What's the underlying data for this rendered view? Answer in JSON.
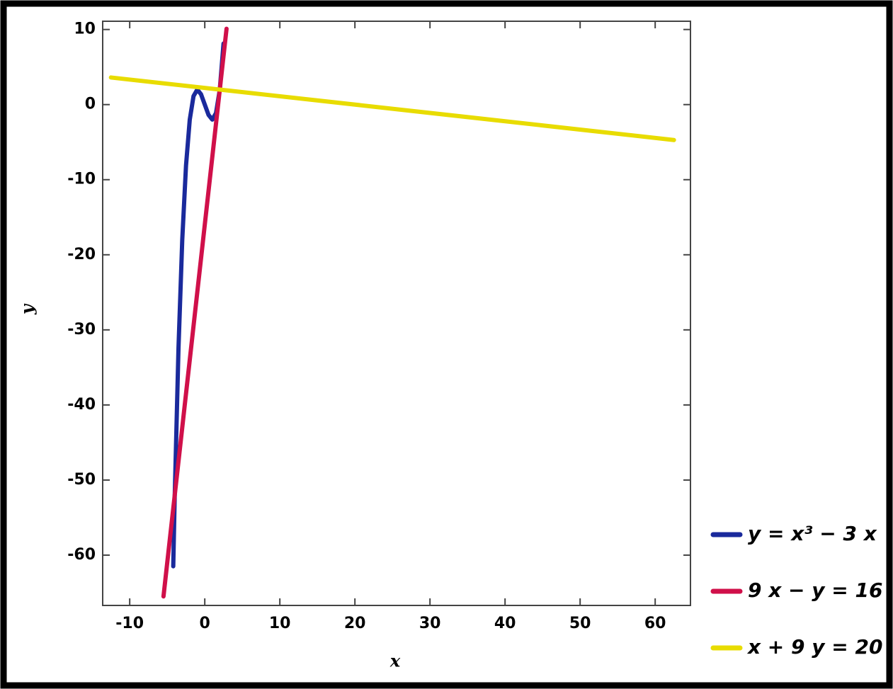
{
  "chart_data": {
    "type": "line",
    "xlabel": "x",
    "ylabel": "y",
    "xlim": [
      -13.6,
      64.7
    ],
    "ylim": [
      -66.7,
      11.1
    ],
    "xticks": [
      -10,
      0,
      10,
      20,
      30,
      40,
      50,
      60
    ],
    "yticks": [
      -60,
      -50,
      -40,
      -30,
      -20,
      -10,
      0,
      10
    ],
    "series": [
      {
        "name": "y = x³ − 3 x",
        "color": "#1a2a9c",
        "x": [
          -4.2,
          -4,
          -3.5,
          -3,
          -2.5,
          -2,
          -1.5,
          -1,
          -0.5,
          0,
          0.5,
          1,
          1.5,
          2,
          2.5
        ],
        "values": [
          -61.488,
          -52,
          -32.375,
          -18,
          -8.125,
          -2,
          1.125,
          2,
          1.375,
          0,
          -1.375,
          -2,
          -1.125,
          2,
          8.125
        ]
      },
      {
        "name": "9 x − y = 16",
        "color": "#d0104a",
        "x": [
          -5.5,
          2.9
        ],
        "values": [
          -65.5,
          10.1
        ]
      },
      {
        "name": "x + 9 y = 20",
        "color": "#e8dc00",
        "x": [
          -12.5,
          62.5
        ],
        "values": [
          3.61,
          -4.72
        ]
      }
    ]
  }
}
